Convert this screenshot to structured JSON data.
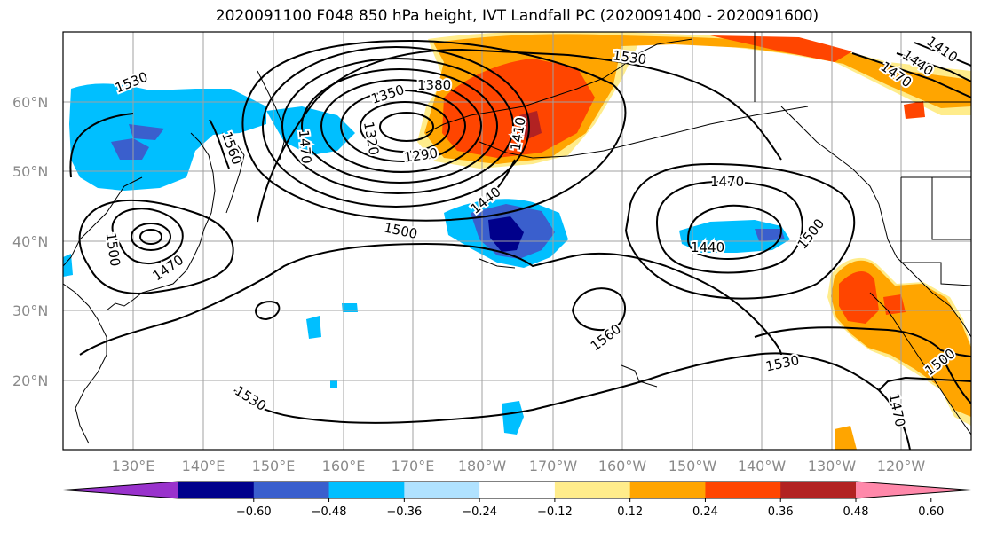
{
  "title": "2020091100 F048 850 hPa height, IVT Landfall PC (2020091400 - 2020091600)",
  "lat_labels": [
    "60°N",
    "50°N",
    "40°N",
    "30°N",
    "20°N"
  ],
  "lon_labels": [
    "130°E",
    "140°E",
    "150°E",
    "160°E",
    "170°E",
    "180°W",
    "170°W",
    "160°W",
    "150°W",
    "140°W",
    "130°W",
    "120°W"
  ],
  "colorbar": {
    "ticks": [
      "−0.60",
      "−0.48",
      "−0.36",
      "−0.24",
      "−0.12",
      "0.12",
      "0.24",
      "0.36",
      "0.48",
      "0.60"
    ],
    "colors": [
      "#9932cc",
      "#00008b",
      "#3a5fcd",
      "#00bfff",
      "#b0e2ff",
      "#ffffff",
      "#ffec8b",
      "#ffa500",
      "#ff4500",
      "#b22222",
      "#ff88aa"
    ]
  },
  "contour_labels": [
    "1530",
    "1560",
    "1470",
    "1350",
    "1380",
    "1320",
    "1290",
    "1410",
    "1440",
    "1500",
    "1530",
    "1470",
    "1440",
    "1500",
    "1560",
    "1530",
    "1500",
    "1470",
    "1530",
    "1470",
    "1500",
    "1410",
    "1440",
    "1470"
  ]
}
